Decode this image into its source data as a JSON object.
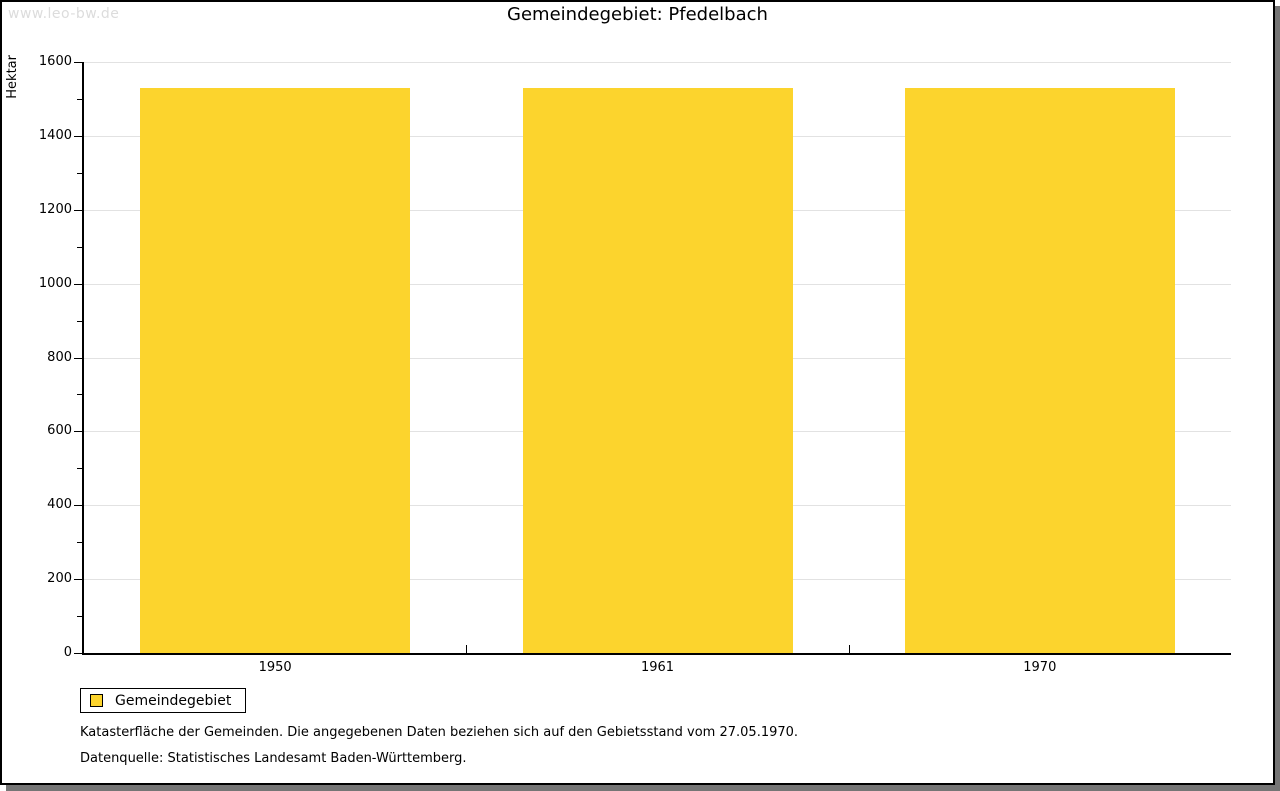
{
  "watermark": "www.leo-bw.de",
  "header": {
    "title": "Gemeindegebiet: Pfedelbach"
  },
  "chart_data": {
    "type": "bar",
    "title": "Gemeindegebiet: Pfedelbach",
    "categories": [
      "1950",
      "1961",
      "1970"
    ],
    "values": [
      1530,
      1530,
      1530
    ],
    "series": [
      {
        "name": "Gemeindegebiet",
        "values": [
          1530,
          1530,
          1530
        ]
      }
    ],
    "xlabel": "",
    "ylabel": "Hektar",
    "ylim": [
      0,
      1600
    ],
    "ytick_step": 200,
    "yminor_step": 100,
    "grid": true,
    "bar_color": "#fcd42d",
    "grid_color": "#e2e2e2",
    "legend_position": "bottom-left"
  },
  "legend": {
    "label": "Gemeindegebiet"
  },
  "footnotes": {
    "line1": "Katasterfläche der Gemeinden. Die angegebenen Daten beziehen sich auf den Gebietsstand vom 27.05.1970.",
    "line2": "Datenquelle: Statistisches Landesamt Baden-Württemberg."
  }
}
